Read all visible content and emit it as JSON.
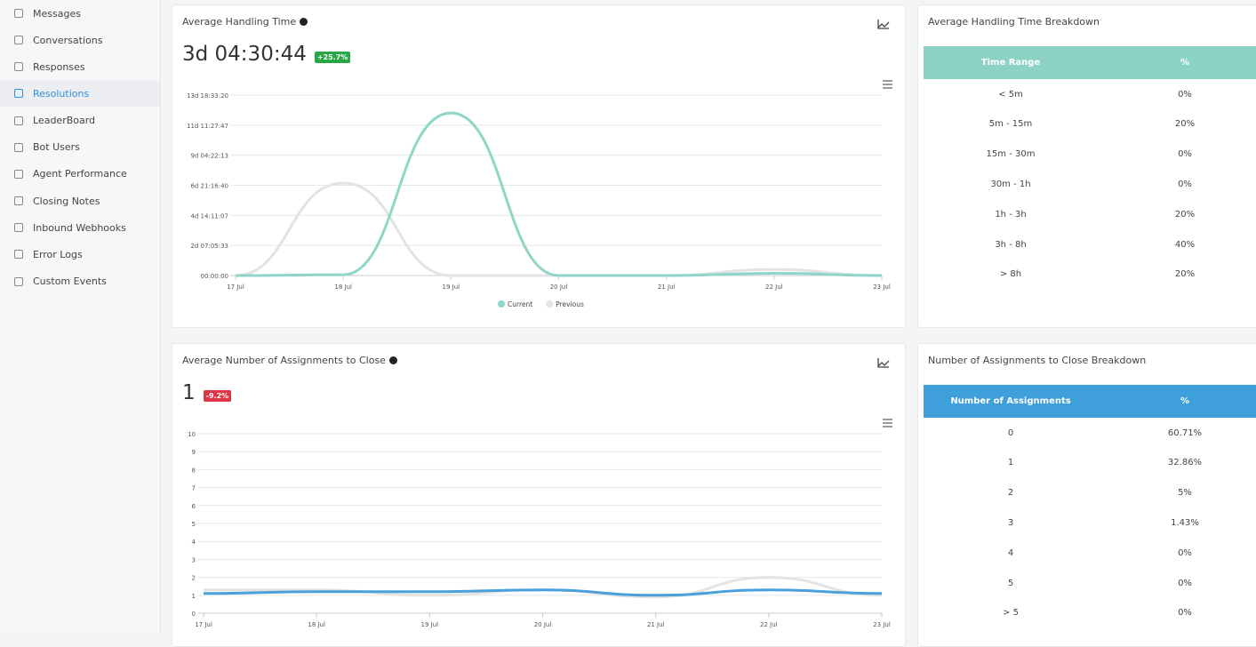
{
  "sidebar": {
    "items": [
      "Messages",
      "Conversations",
      "Responses",
      "Resolutions",
      "LeaderBoard",
      "Bot Users",
      "Agent Performance",
      "Closing Notes",
      "Inbound Webhooks",
      "Error Logs",
      "Custom Events"
    ]
  },
  "chart_data": [
    {
      "type": "line",
      "title": "Average Handling Time",
      "kpi": "3d 04:30:44",
      "change": "+25.7%",
      "categories": [
        "17 Jul",
        "18 Jul",
        "19 Jul",
        "20 Jul",
        "21 Jul",
        "22 Jul",
        "23 Jul"
      ],
      "series": [
        {
          "name": "Current",
          "color": "#8fd5c8",
          "values": [
            0,
            5000,
            1072000,
            0,
            0,
            15000,
            0
          ]
        },
        {
          "name": "Previous",
          "color": "#e3e3e3",
          "values": [
            0,
            610000,
            0,
            0,
            0,
            40000,
            0
          ]
        }
      ],
      "ylim": [
        0,
        1190000
      ],
      "yticks": [
        {
          "value": 0,
          "label": "00:00:00"
        },
        {
          "value": 198333,
          "label": "2d 07:05:33"
        },
        {
          "value": 396667,
          "label": "4d 14:11:07"
        },
        {
          "value": 595000,
          "label": "6d 21:16:40"
        },
        {
          "value": 793333,
          "label": "9d 04:22:13"
        },
        {
          "value": 991667,
          "label": "11d 11:27:47"
        },
        {
          "value": 1190000,
          "label": "13d 18:33:20"
        }
      ],
      "grid": true
    },
    {
      "type": "line",
      "title": "Average Number of Assignments to Close",
      "kpi": "1",
      "change": "-9.2%",
      "categories": [
        "17 Jul",
        "18 Jul",
        "19 Jul",
        "20 Jul",
        "21 Jul",
        "22 Jul",
        "23 Jul"
      ],
      "series": [
        {
          "color": "#4a9fdc",
          "values": [
            1.1,
            1.2,
            1.2,
            1.3,
            1.0,
            1.3,
            1.1
          ]
        },
        {
          "color": "#e3e3e3",
          "values": [
            1.3,
            1.3,
            1.0,
            1.3,
            0.9,
            2.0,
            1.0
          ]
        }
      ],
      "ylim": [
        0,
        10
      ],
      "yticks": [
        0,
        1,
        2,
        3,
        4,
        5,
        6,
        7,
        8,
        9,
        10
      ],
      "grid": true
    }
  ],
  "tables": [
    {
      "title": "Average Handling Time Breakdown",
      "header_color": "#8cd3c6",
      "columns": [
        "Time Range",
        "%"
      ],
      "rows": [
        [
          "< 5m",
          "0%"
        ],
        [
          "5m - 15m",
          "20%"
        ],
        [
          "15m - 30m",
          "0%"
        ],
        [
          "30m - 1h",
          "0%"
        ],
        [
          "1h - 3h",
          "20%"
        ],
        [
          "3h - 8h",
          "40%"
        ],
        [
          "> 8h",
          "20%"
        ]
      ]
    },
    {
      "title": "Number of Assignments to Close Breakdown",
      "header_color": "#3f9fdb",
      "columns": [
        "Number of Assignments",
        "%"
      ],
      "rows": [
        [
          "0",
          "60.71%"
        ],
        [
          "1",
          "32.86%"
        ],
        [
          "2",
          "5%"
        ],
        [
          "3",
          "1.43%"
        ],
        [
          "4",
          "0%"
        ],
        [
          "5",
          "0%"
        ],
        [
          "> 5",
          "0%"
        ]
      ]
    }
  ]
}
